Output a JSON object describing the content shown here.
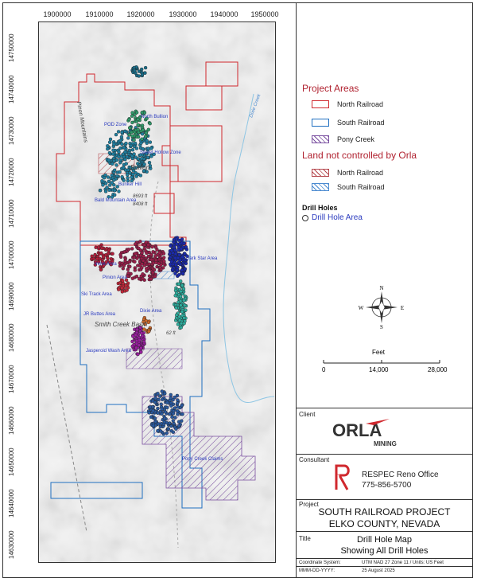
{
  "map": {
    "x_ticks": [
      "1900000",
      "1910000",
      "1920000",
      "1930000",
      "1940000",
      "1950000"
    ],
    "y_ticks": [
      "14750000",
      "14740000",
      "14730000",
      "14720000",
      "14710000",
      "14700000",
      "14690000",
      "14680000",
      "14670000",
      "14660000",
      "14650000",
      "14640000",
      "14630000"
    ],
    "labels": {
      "pod_zone": "POD Zone",
      "north_bullion": "North Bullion",
      "sweet_hollow": "Sweet Hollow Zone",
      "bullion": "Bullion",
      "bunker_hill": "Bunker Hill",
      "bald_mountain": "Bald Mountain Area",
      "elev_8693": "8693 ft",
      "elev_8408": "8408 ft",
      "irene": "Irene Area",
      "pinion": "Pinion Area",
      "dark_star": "Dark Star Area",
      "ski_track": "Ski Track Area",
      "jr_buttes": "JR Buttes Area",
      "dixie_area": "Dixie Area",
      "smith_creek": "Smith Creek Basin",
      "jasperoid_wash": "Jasperoid Wash Area",
      "pony_creek_claims": "Pony Creek Claims",
      "dixie_creek": "Dixie Creek",
      "pinon_mountains": "Pinon Mountains",
      "elev_62": "62 ft"
    }
  },
  "legend": {
    "project_areas_title": "Project Areas",
    "project_areas": [
      {
        "label": "North Railroad",
        "color": "#d0282e",
        "pattern": "outline"
      },
      {
        "label": "South Railroad",
        "color": "#1f6fc0",
        "pattern": "outline"
      },
      {
        "label": "Pony Creek",
        "color": "#7a4fa0",
        "pattern": "hatch"
      }
    ],
    "land_title": "Land not controlled by Orla",
    "land": [
      {
        "label": "North Railroad",
        "color": "#b5484e",
        "pattern": "hatch"
      },
      {
        "label": "South Railroad",
        "color": "#4a8ad0",
        "pattern": "hatch"
      }
    ],
    "drill_holes_title": "Drill Holes",
    "drill_hole_area": "Drill Hole Area"
  },
  "compass": {
    "n": "N",
    "s": "S",
    "e": "E",
    "w": "W"
  },
  "scale": {
    "unit": "Feet",
    "labels": [
      "0",
      "14,000",
      "28,000"
    ]
  },
  "client": {
    "label": "Client",
    "company": "ORLA",
    "tagline": "MINING"
  },
  "consultant": {
    "label": "Consultant",
    "office": "RESPEC Reno Office",
    "phone": "775-856-5700"
  },
  "project": {
    "label": "Project",
    "line1": "SOUTH RAILROAD PROJECT",
    "line2": "ELKO COUNTY, NEVADA"
  },
  "title": {
    "label": "Title",
    "line1": "Drill Hole Map",
    "line2": "Showing All Drill Holes"
  },
  "footer": {
    "coord_label": "Coordinate System:",
    "coord_value": "UTM NAD 27 Zone 11 / Units: US Feet",
    "date_label": "MMM-DD-YYYY:",
    "date_value": "25 August 2025"
  },
  "colors": {
    "north": "#d0282e",
    "south": "#1f6fc0",
    "pony": "#7a4fa0"
  }
}
